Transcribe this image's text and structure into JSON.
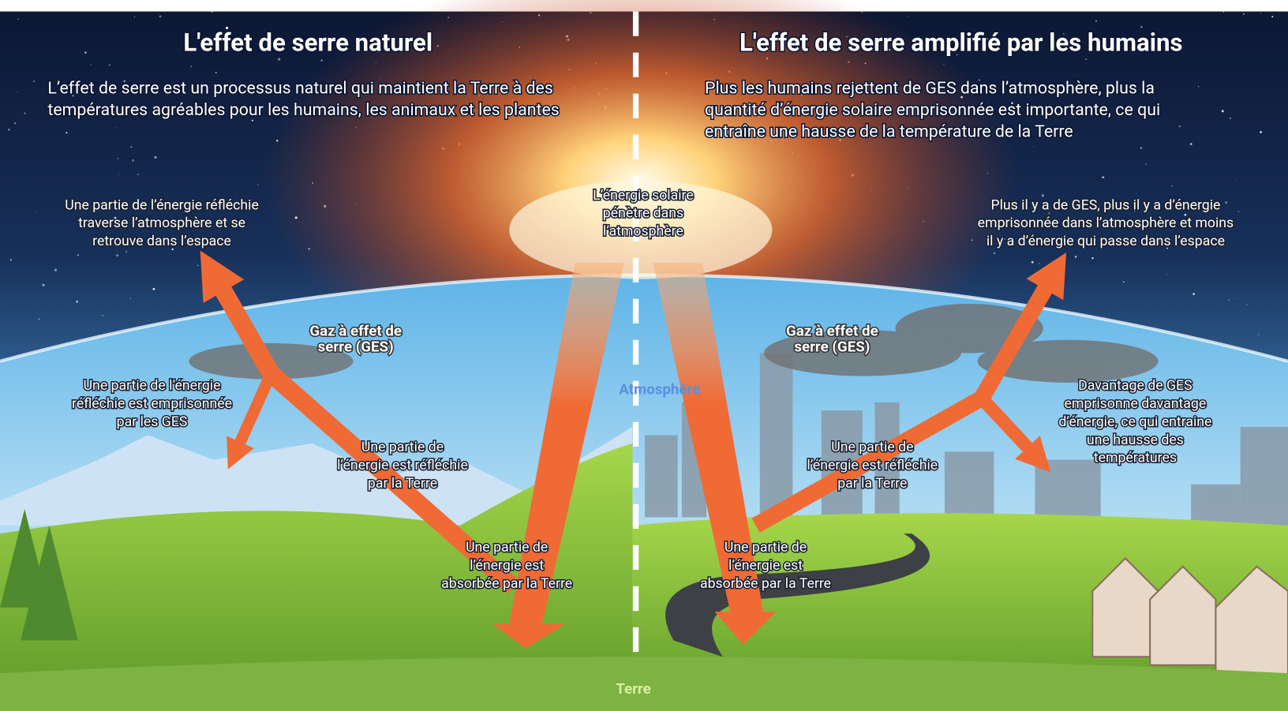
{
  "header": {
    "center_labels": {
      "sun": [
        "L’énergie solaire",
        "pénètre dans",
        "l’atmosphère"
      ],
      "atmosphere": "Atmosphère",
      "earth": "Terre"
    }
  },
  "left": {
    "title": "L'effet de serre naturel",
    "description": [
      "L’effet de serre est un processus naturel qui maintient la Terre à des",
      "températures agréables pour les humains, les animaux et les plantes"
    ],
    "labels": {
      "space": [
        "Une partie de l’énergie réfléchie",
        "traverse l’atmosphère et se",
        "retrouve dans l’espace"
      ],
      "ges": [
        "Gaz à effet de",
        "serre (GES)"
      ],
      "trapped": [
        "Une partie de l’énergie",
        "réfléchie est emprisonnée",
        "par les GES"
      ],
      "reflected": [
        "Une partie de",
        "l’énergie est réfléchie",
        "par la Terre"
      ],
      "absorbed": [
        "Une partie de",
        "l’énergie est",
        "absorbée par la Terre"
      ]
    }
  },
  "right": {
    "title": "L'effet de serre amplifié par les humains",
    "description": [
      "Plus les humains rejettent de GES dans l’atmosphère, plus la",
      "quantité d’énergie solaire emprisonnée est importante, ce qui",
      "entraîne une hausse de la température de la Terre"
    ],
    "labels": {
      "space": [
        "Plus il y a de GES, plus il y a d’énergie",
        "emprisonnée dans l’atmosphère et moins",
        "il y a d’énergie qui passe dans l’espace"
      ],
      "ges": [
        "Gaz à effet de",
        "serre (GES)"
      ],
      "more": [
        "Davantage de GES",
        "emprisonne davantage",
        "d’énergie, ce qui entraine",
        "une hausse des",
        "températures"
      ],
      "reflected": [
        "Une partie de",
        "l’énergie est réfléchie",
        "par la Terre"
      ],
      "absorbed": [
        "Une partie de",
        "l’énergie est",
        "absorbée par la Terre"
      ]
    }
  }
}
